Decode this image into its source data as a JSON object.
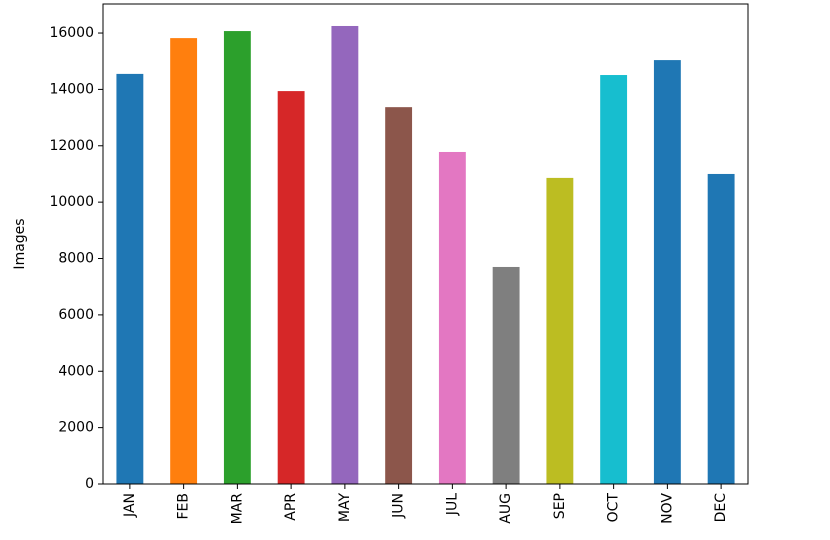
{
  "chart_data": {
    "type": "bar",
    "y_label": "Images",
    "categories": [
      "JAN",
      "FEB",
      "MAR",
      "APR",
      "MAY",
      "JUN",
      "JUL",
      "AUG",
      "SEP",
      "OCT",
      "NOV",
      "DEC"
    ],
    "values": [
      14550,
      15820,
      16070,
      13940,
      16250,
      13370,
      11780,
      7700,
      10860,
      14510,
      15040,
      11000
    ],
    "colors": [
      "#1f77b4",
      "#ff7f0e",
      "#2ca02c",
      "#d62728",
      "#9467bd",
      "#8c564b",
      "#e377c2",
      "#7f7f7f",
      "#bcbd22",
      "#17becf",
      "#1f77b4",
      "#1f77b4"
    ],
    "ylim": [
      0,
      17030
    ],
    "yticks": [
      0,
      2000,
      4000,
      6000,
      8000,
      10000,
      12000,
      14000,
      16000
    ],
    "grid": false
  }
}
